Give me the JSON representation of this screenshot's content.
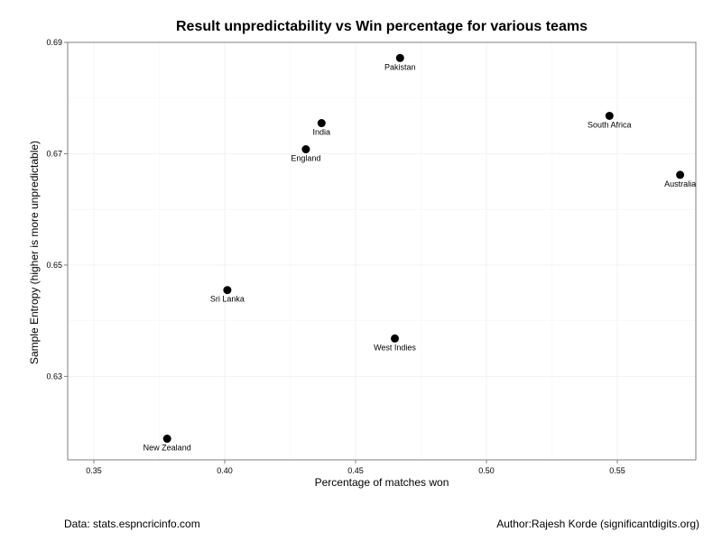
{
  "chart_data": {
    "type": "scatter",
    "title": "Result unpredictability vs Win percentage for various teams",
    "xlabel": "Percentage of matches won",
    "ylabel": "Sample Entropy (higher is more unpredictable)",
    "xlim": [
      0.34,
      0.58
    ],
    "ylim": [
      0.615,
      0.69
    ],
    "x_ticks": [
      0.35,
      0.4,
      0.45,
      0.5,
      0.55
    ],
    "x_tick_labels": [
      "0.35",
      "0.40",
      "0.45",
      "0.50",
      "0.55"
    ],
    "y_ticks": [
      0.63,
      0.65,
      0.67,
      0.69
    ],
    "y_tick_labels": [
      "0.63",
      "0.65",
      "0.67",
      "0.69"
    ],
    "grid": true,
    "points": [
      {
        "label": "Pakistan",
        "x": 0.467,
        "y": 0.6872
      },
      {
        "label": "India",
        "x": 0.437,
        "y": 0.6755
      },
      {
        "label": "England",
        "x": 0.431,
        "y": 0.6708
      },
      {
        "label": "South Africa",
        "x": 0.547,
        "y": 0.6768
      },
      {
        "label": "Australia",
        "x": 0.574,
        "y": 0.6662
      },
      {
        "label": "Sri Lanka",
        "x": 0.401,
        "y": 0.6455
      },
      {
        "label": "West Indies",
        "x": 0.465,
        "y": 0.6368
      },
      {
        "label": "New Zealand",
        "x": 0.378,
        "y": 0.6188
      }
    ],
    "point_color": "#000000"
  },
  "captions": {
    "source": "Data: stats.espncricinfo.com",
    "author": "Author:Rajesh Korde (significantdigits.org)"
  }
}
